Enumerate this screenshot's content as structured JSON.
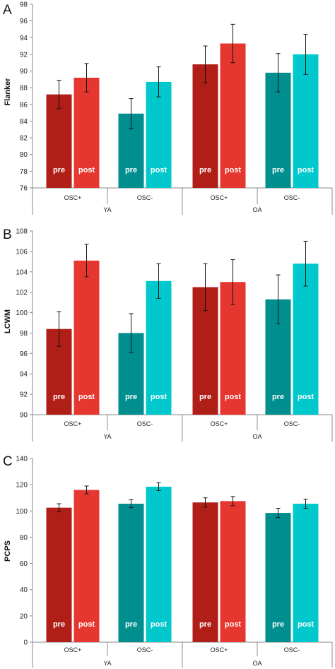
{
  "colors": {
    "pre_osc_plus": "#b01e18",
    "post_osc_plus": "#e63630",
    "pre_osc_minus": "#008e8e",
    "post_osc_minus": "#00c8cc",
    "axis": "#888888",
    "error_bar": "#111111"
  },
  "chart_data": [
    {
      "type": "bar",
      "panel": "A",
      "title": "",
      "ylabel": "Flanker",
      "ylim": [
        76,
        98
      ],
      "yticks": [
        76,
        78,
        80,
        82,
        84,
        86,
        88,
        90,
        92,
        94,
        96,
        98
      ],
      "groups": [
        "OSC+",
        "OSC-",
        "OSC+",
        "OSC-"
      ],
      "supergroups": [
        "YA",
        "OA"
      ],
      "series": [
        {
          "name": "pre",
          "values": [
            87.2,
            84.9,
            90.8,
            89.8
          ],
          "errors": [
            1.7,
            1.8,
            2.2,
            2.3
          ]
        },
        {
          "name": "post",
          "values": [
            89.2,
            88.7,
            93.3,
            92.0
          ],
          "errors": [
            1.7,
            1.8,
            2.3,
            2.4
          ]
        }
      ]
    },
    {
      "type": "bar",
      "panel": "B",
      "title": "",
      "ylabel": "LCWM",
      "ylim": [
        90,
        108
      ],
      "yticks": [
        90,
        92,
        94,
        96,
        98,
        100,
        102,
        104,
        106,
        108
      ],
      "groups": [
        "OSC+",
        "OSC-",
        "OSC+",
        "OSC-"
      ],
      "supergroups": [
        "YA",
        "OA"
      ],
      "series": [
        {
          "name": "pre",
          "values": [
            98.4,
            98.0,
            102.5,
            101.3
          ],
          "errors": [
            1.7,
            1.9,
            2.3,
            2.4
          ]
        },
        {
          "name": "post",
          "values": [
            105.1,
            103.1,
            103.0,
            104.8
          ],
          "errors": [
            1.6,
            1.7,
            2.2,
            2.2
          ]
        }
      ]
    },
    {
      "type": "bar",
      "panel": "C",
      "title": "",
      "ylabel": "PCPS",
      "ylim": [
        0,
        140
      ],
      "yticks": [
        0,
        20,
        40,
        60,
        80,
        100,
        120,
        140
      ],
      "groups": [
        "OSC+",
        "OSC-",
        "OSC+",
        "OSC-"
      ],
      "supergroups": [
        "YA",
        "OA"
      ],
      "series": [
        {
          "name": "pre",
          "values": [
            102.5,
            105.5,
            106.5,
            98.5
          ],
          "errors": [
            3.0,
            3.0,
            3.5,
            3.5
          ]
        },
        {
          "name": "post",
          "values": [
            116.0,
            118.5,
            107.5,
            105.5
          ],
          "errors": [
            3.0,
            3.0,
            3.5,
            3.5
          ]
        }
      ]
    }
  ]
}
